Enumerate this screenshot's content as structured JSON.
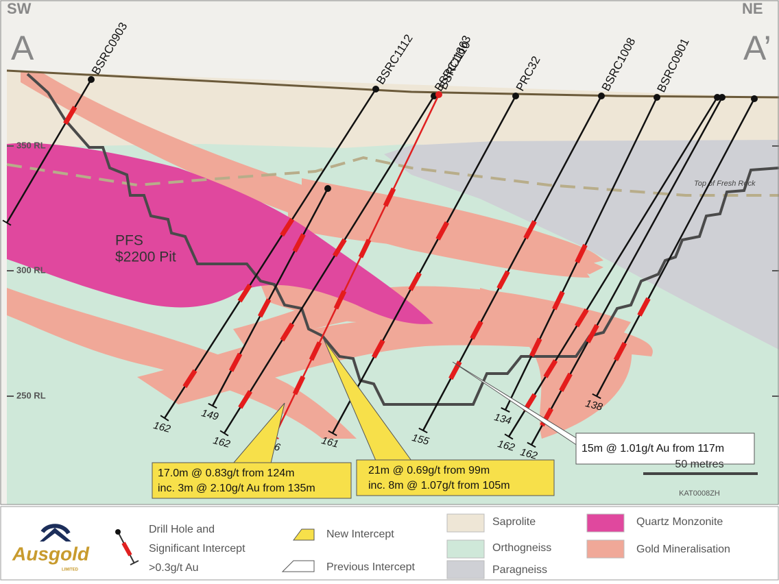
{
  "section": {
    "start": {
      "direction": "SW",
      "label": "A"
    },
    "end": {
      "direction": "NE",
      "label": "A’"
    }
  },
  "elevation_labels": [
    "350 RL",
    "300 RL",
    "250 RL"
  ],
  "pit_label": {
    "line1": "PFS",
    "line2": "$2200 Pit"
  },
  "fresh_rock_label": "Top of Fresh Rock",
  "drill_holes": [
    "BSRC0903",
    "BSRC1112",
    "BSRC1110",
    "BSRC1663",
    "PRC32",
    "BSRC1008",
    "BSRC0901"
  ],
  "hole_depths": [
    162,
    149,
    162,
    156,
    161,
    155,
    134,
    162,
    162,
    138
  ],
  "callouts": [
    {
      "line1": "17.0m @ 0.83g/t from 124m",
      "line2": "inc. 3m @ 2.10g/t Au from 135m"
    },
    {
      "line1": "21m @ 0.69g/t from 99m",
      "line2": "inc. 8m @ 1.07g/t from 105m"
    },
    {
      "line1": "15m @ 1.01g/t Au from 117m"
    }
  ],
  "scale_bar": "50 metres",
  "figure_id": "KAT0008ZH",
  "legend": {
    "logo": {
      "name": "Ausgold",
      "subtitle": "LIMITED"
    },
    "drill_hole": [
      "Drill Hole and",
      "Significant Intercept",
      ">0.3g/t Au"
    ],
    "new_intercept": "New Intercept",
    "previous_intercept": "Previous Intercept",
    "units": [
      "Saprolite",
      "Orthogneiss",
      "Paragneiss",
      "Quartz Monzonite",
      "Gold Mineralisation"
    ]
  }
}
